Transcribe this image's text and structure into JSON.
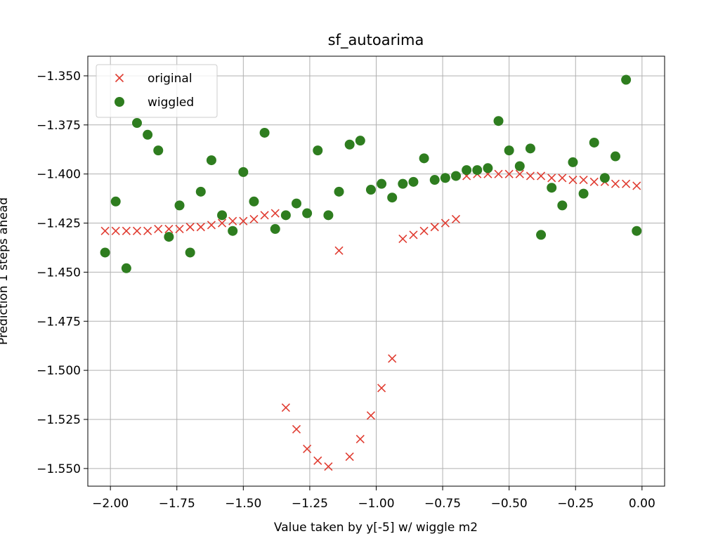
{
  "chart_data": {
    "type": "scatter",
    "title": "sf_autoarima",
    "xlabel": "Value taken by y[-5] w/ wiggle m2",
    "ylabel": "Prediction 1 steps ahead",
    "xlim": [
      -2.085,
      0.085
    ],
    "ylim": [
      -1.559,
      -1.34
    ],
    "x_ticks": [
      -2.0,
      -1.75,
      -1.5,
      -1.25,
      -1.0,
      -0.75,
      -0.5,
      -0.25,
      0.0
    ],
    "x_tick_labels": [
      "−2.00",
      "−1.75",
      "−1.50",
      "−1.25",
      "−1.00",
      "−0.75",
      "−0.50",
      "−0.25",
      "0.00"
    ],
    "y_ticks": [
      -1.55,
      -1.525,
      -1.5,
      -1.475,
      -1.45,
      -1.425,
      -1.4,
      -1.375,
      -1.35
    ],
    "y_tick_labels": [
      "−1.550",
      "−1.525",
      "−1.500",
      "−1.475",
      "−1.450",
      "−1.425",
      "−1.400",
      "−1.375",
      "−1.350"
    ],
    "grid": true,
    "legend_position": "top-left",
    "series": [
      {
        "name": "original",
        "marker": "x",
        "color": "#e03c31",
        "points": [
          [
            -2.02,
            -1.429
          ],
          [
            -1.98,
            -1.429
          ],
          [
            -1.94,
            -1.429
          ],
          [
            -1.9,
            -1.429
          ],
          [
            -1.86,
            -1.429
          ],
          [
            -1.82,
            -1.428
          ],
          [
            -1.78,
            -1.428
          ],
          [
            -1.74,
            -1.428
          ],
          [
            -1.7,
            -1.427
          ],
          [
            -1.66,
            -1.427
          ],
          [
            -1.62,
            -1.426
          ],
          [
            -1.58,
            -1.425
          ],
          [
            -1.54,
            -1.424
          ],
          [
            -1.5,
            -1.424
          ],
          [
            -1.46,
            -1.423
          ],
          [
            -1.42,
            -1.421
          ],
          [
            -1.38,
            -1.42
          ],
          [
            -1.34,
            -1.519
          ],
          [
            -1.3,
            -1.53
          ],
          [
            -1.26,
            -1.54
          ],
          [
            -1.22,
            -1.546
          ],
          [
            -1.18,
            -1.549
          ],
          [
            -1.14,
            -1.439
          ],
          [
            -1.1,
            -1.544
          ],
          [
            -1.06,
            -1.535
          ],
          [
            -1.02,
            -1.523
          ],
          [
            -0.98,
            -1.509
          ],
          [
            -0.94,
            -1.494
          ],
          [
            -0.9,
            -1.433
          ],
          [
            -0.86,
            -1.431
          ],
          [
            -0.82,
            -1.429
          ],
          [
            -0.78,
            -1.427
          ],
          [
            -0.74,
            -1.425
          ],
          [
            -0.7,
            -1.423
          ],
          [
            -0.66,
            -1.401
          ],
          [
            -0.62,
            -1.4
          ],
          [
            -0.58,
            -1.4
          ],
          [
            -0.54,
            -1.4
          ],
          [
            -0.5,
            -1.4
          ],
          [
            -0.46,
            -1.4
          ],
          [
            -0.42,
            -1.401
          ],
          [
            -0.38,
            -1.401
          ],
          [
            -0.34,
            -1.402
          ],
          [
            -0.3,
            -1.402
          ],
          [
            -0.26,
            -1.403
          ],
          [
            -0.22,
            -1.403
          ],
          [
            -0.18,
            -1.404
          ],
          [
            -0.14,
            -1.404
          ],
          [
            -0.1,
            -1.405
          ],
          [
            -0.06,
            -1.405
          ],
          [
            -0.02,
            -1.406
          ]
        ]
      },
      {
        "name": "wiggled",
        "marker": "o",
        "color": "#2e7d1f",
        "points": [
          [
            -2.02,
            -1.44
          ],
          [
            -1.98,
            -1.414
          ],
          [
            -1.94,
            -1.448
          ],
          [
            -1.9,
            -1.374
          ],
          [
            -1.86,
            -1.38
          ],
          [
            -1.82,
            -1.388
          ],
          [
            -1.78,
            -1.432
          ],
          [
            -1.74,
            -1.416
          ],
          [
            -1.7,
            -1.44
          ],
          [
            -1.66,
            -1.409
          ],
          [
            -1.62,
            -1.393
          ],
          [
            -1.58,
            -1.421
          ],
          [
            -1.54,
            -1.429
          ],
          [
            -1.5,
            -1.399
          ],
          [
            -1.46,
            -1.414
          ],
          [
            -1.42,
            -1.379
          ],
          [
            -1.38,
            -1.428
          ],
          [
            -1.34,
            -1.421
          ],
          [
            -1.3,
            -1.415
          ],
          [
            -1.26,
            -1.42
          ],
          [
            -1.22,
            -1.388
          ],
          [
            -1.18,
            -1.421
          ],
          [
            -1.14,
            -1.409
          ],
          [
            -1.1,
            -1.385
          ],
          [
            -1.06,
            -1.383
          ],
          [
            -1.02,
            -1.408
          ],
          [
            -0.98,
            -1.405
          ],
          [
            -0.94,
            -1.412
          ],
          [
            -0.9,
            -1.405
          ],
          [
            -0.86,
            -1.404
          ],
          [
            -0.82,
            -1.392
          ],
          [
            -0.78,
            -1.403
          ],
          [
            -0.74,
            -1.402
          ],
          [
            -0.7,
            -1.401
          ],
          [
            -0.66,
            -1.398
          ],
          [
            -0.62,
            -1.398
          ],
          [
            -0.58,
            -1.397
          ],
          [
            -0.54,
            -1.373
          ],
          [
            -0.5,
            -1.388
          ],
          [
            -0.46,
            -1.396
          ],
          [
            -0.42,
            -1.387
          ],
          [
            -0.38,
            -1.431
          ],
          [
            -0.34,
            -1.407
          ],
          [
            -0.3,
            -1.416
          ],
          [
            -0.26,
            -1.394
          ],
          [
            -0.22,
            -1.41
          ],
          [
            -0.18,
            -1.384
          ],
          [
            -0.14,
            -1.402
          ],
          [
            -0.1,
            -1.391
          ],
          [
            -0.06,
            -1.352
          ],
          [
            -0.02,
            -1.429
          ]
        ]
      }
    ]
  }
}
